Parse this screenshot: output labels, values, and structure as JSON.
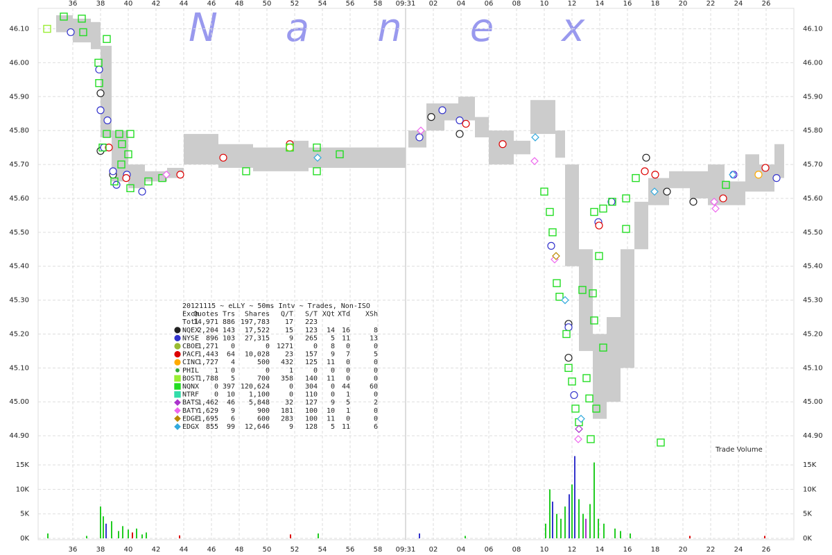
{
  "chart_data": {
    "type": "scatter",
    "watermark": "Nanex",
    "volume_label": "Trade Volume",
    "xlim": [
      33.5,
      88
    ],
    "xticks": [
      36,
      38,
      40,
      42,
      44,
      46,
      48,
      50,
      52,
      54,
      56,
      58,
      {
        "value": 60,
        "label": "09:31"
      },
      {
        "value": 62,
        "label": "02"
      },
      {
        "value": 64,
        "label": "04"
      },
      {
        "value": 66,
        "label": "06"
      },
      {
        "value": 68,
        "label": "08"
      },
      {
        "value": 70,
        "label": "10"
      },
      {
        "value": 72,
        "label": "12"
      },
      {
        "value": 74,
        "label": "14"
      },
      {
        "value": 76,
        "label": "16"
      },
      {
        "value": 78,
        "label": "18"
      },
      {
        "value": 80,
        "label": "20"
      },
      {
        "value": 82,
        "label": "22"
      },
      {
        "value": 84,
        "label": "24"
      },
      {
        "value": 86,
        "label": "26"
      }
    ],
    "ylim": [
      44.845,
      46.185
    ],
    "yticks": [
      {
        "value": 46.1,
        "label": "46.10"
      },
      {
        "value": 46.0,
        "label": "46.00"
      },
      {
        "value": 45.9,
        "label": "45.90"
      },
      {
        "value": 45.8,
        "label": "45.80"
      },
      {
        "value": 45.7,
        "label": "45.70"
      },
      {
        "value": 45.6,
        "label": "45.60"
      },
      {
        "value": 45.5,
        "label": "45.50"
      },
      {
        "value": 45.4,
        "label": "45.40"
      },
      {
        "value": 45.3,
        "label": "45.30"
      },
      {
        "value": 45.2,
        "label": "45.20"
      },
      {
        "value": 45.1,
        "label": "45.10"
      },
      {
        "value": 45.0,
        "label": "45.00"
      },
      {
        "value": 44.9,
        "label": "44.90"
      }
    ],
    "y2lim": [
      0,
      17000
    ],
    "y2ticks": [
      {
        "value": 15000,
        "label": "15K"
      },
      {
        "value": 10000,
        "label": "10K"
      },
      {
        "value": 5000,
        "label": "5K"
      },
      {
        "value": 0,
        "label": "0K"
      }
    ],
    "grid": true,
    "nbbo_color": "#cccccc",
    "nbbo": [
      {
        "x0": 34.8,
        "x1": 36.0,
        "low": 46.09,
        "high": 46.14
      },
      {
        "x0": 36.0,
        "x1": 37.3,
        "low": 46.06,
        "high": 46.13
      },
      {
        "x0": 37.3,
        "x1": 38.0,
        "low": 46.04,
        "high": 46.12
      },
      {
        "x0": 38.0,
        "x1": 38.8,
        "low": 45.78,
        "high": 46.05
      },
      {
        "x0": 38.8,
        "x1": 40.0,
        "low": 45.65,
        "high": 45.8
      },
      {
        "x0": 40.0,
        "x1": 41.2,
        "low": 45.63,
        "high": 45.7
      },
      {
        "x0": 41.2,
        "x1": 42.8,
        "low": 45.65,
        "high": 45.68
      },
      {
        "x0": 42.8,
        "x1": 44.0,
        "low": 45.66,
        "high": 45.69
      },
      {
        "x0": 44.0,
        "x1": 46.5,
        "low": 45.7,
        "high": 45.79
      },
      {
        "x0": 46.5,
        "x1": 49.0,
        "low": 45.69,
        "high": 45.76
      },
      {
        "x0": 49.0,
        "x1": 51.8,
        "low": 45.68,
        "high": 45.75
      },
      {
        "x0": 51.8,
        "x1": 53.0,
        "low": 45.68,
        "high": 45.77
      },
      {
        "x0": 53.0,
        "x1": 56.0,
        "low": 45.69,
        "high": 45.75
      },
      {
        "x0": 56.0,
        "x1": 60.0,
        "low": 45.69,
        "high": 45.75
      },
      {
        "x0": 60.2,
        "x1": 61.5,
        "low": 45.75,
        "high": 45.8
      },
      {
        "x0": 61.5,
        "x1": 62.8,
        "low": 45.8,
        "high": 45.88
      },
      {
        "x0": 62.8,
        "x1": 63.8,
        "low": 45.83,
        "high": 45.88
      },
      {
        "x0": 63.8,
        "x1": 65.0,
        "low": 45.83,
        "high": 45.9
      },
      {
        "x0": 65.0,
        "x1": 66.0,
        "low": 45.78,
        "high": 45.84
      },
      {
        "x0": 66.0,
        "x1": 67.8,
        "low": 45.7,
        "high": 45.8
      },
      {
        "x0": 67.8,
        "x1": 69.0,
        "low": 45.73,
        "high": 45.77
      },
      {
        "x0": 69.0,
        "x1": 70.8,
        "low": 45.79,
        "high": 45.89
      },
      {
        "x0": 70.8,
        "x1": 71.5,
        "low": 45.72,
        "high": 45.8
      },
      {
        "x0": 71.5,
        "x1": 72.5,
        "low": 45.4,
        "high": 45.7
      },
      {
        "x0": 72.5,
        "x1": 73.5,
        "low": 45.15,
        "high": 45.45
      },
      {
        "x0": 73.5,
        "x1": 74.5,
        "low": 44.95,
        "high": 45.2
      },
      {
        "x0": 74.5,
        "x1": 75.5,
        "low": 45.0,
        "high": 45.25
      },
      {
        "x0": 75.5,
        "x1": 76.5,
        "low": 45.1,
        "high": 45.45
      },
      {
        "x0": 76.5,
        "x1": 77.5,
        "low": 45.45,
        "high": 45.59
      },
      {
        "x0": 77.5,
        "x1": 79.0,
        "low": 45.58,
        "high": 45.66
      },
      {
        "x0": 79.0,
        "x1": 80.5,
        "low": 45.63,
        "high": 45.68
      },
      {
        "x0": 80.5,
        "x1": 81.8,
        "low": 45.6,
        "high": 45.68
      },
      {
        "x0": 81.8,
        "x1": 83.0,
        "low": 45.58,
        "high": 45.7
      },
      {
        "x0": 83.0,
        "x1": 84.5,
        "low": 45.58,
        "high": 45.65
      },
      {
        "x0": 84.5,
        "x1": 85.5,
        "low": 45.62,
        "high": 45.73
      },
      {
        "x0": 85.5,
        "x1": 86.6,
        "low": 45.62,
        "high": 45.7
      },
      {
        "x0": 86.6,
        "x1": 87.3,
        "low": 45.66,
        "high": 45.76
      }
    ],
    "table": {
      "title": "20121115 ~ eLLY ~ 50ms Intv ~ Trades, Non-ISO",
      "columns": [
        "Exch",
        "Quotes",
        "Trs",
        "Shares",
        "Q/T",
        "S/T",
        "XQt",
        "XTd",
        "XSh"
      ],
      "total": {
        "name": "Totl",
        "stats": [
          "14,971",
          "886",
          "197,783",
          "17",
          "223"
        ]
      }
    },
    "series": [
      {
        "name": "NQEX",
        "color": "#222222",
        "marker": "circle",
        "stats": [
          "2,204",
          "143",
          "17,522",
          "15",
          "123",
          "14",
          "16",
          "8"
        ],
        "x": [
          38.0,
          38.0,
          38.9,
          61.85,
          63.9,
          71.75,
          71.75,
          77.35,
          78.85,
          80.75
        ],
        "y": [
          45.91,
          45.74,
          45.67,
          45.84,
          45.79,
          45.23,
          45.13,
          45.72,
          45.62,
          45.59
        ]
      },
      {
        "name": "NYSE",
        "color": "#3333cc",
        "marker": "circle",
        "stats": [
          "896",
          "103",
          "27,315",
          "9",
          "265",
          "5",
          "11",
          "13"
        ],
        "x": [
          35.85,
          37.9,
          38.0,
          38.25,
          38.5,
          38.9,
          39.15,
          39.9,
          41.0,
          61.0,
          62.65,
          63.9,
          70.5,
          71.75,
          72.15,
          73.9,
          74.85,
          83.65,
          86.75
        ],
        "y": [
          46.09,
          45.98,
          45.86,
          45.75,
          45.83,
          45.68,
          45.64,
          45.67,
          45.62,
          45.78,
          45.86,
          45.83,
          45.46,
          45.22,
          45.02,
          45.53,
          45.59,
          45.67,
          45.66
        ]
      },
      {
        "name": "CBOE",
        "color": "#99bb33",
        "marker": "circle",
        "stats": [
          "1,271",
          "0",
          "0",
          "1271",
          "0",
          "8",
          "0",
          "0"
        ],
        "x": [],
        "y": []
      },
      {
        "name": "PACF",
        "color": "#dd0000",
        "marker": "circle",
        "stats": [
          "1,443",
          "64",
          "10,028",
          "23",
          "157",
          "9",
          "7",
          "5"
        ],
        "x": [
          38.6,
          39.85,
          43.75,
          46.85,
          51.65,
          64.35,
          67.0,
          73.95,
          77.25,
          78.0,
          82.9,
          85.95
        ],
        "y": [
          45.75,
          45.66,
          45.67,
          45.72,
          45.76,
          45.82,
          45.76,
          45.52,
          45.68,
          45.67,
          45.6,
          45.69
        ]
      },
      {
        "name": "CINC",
        "color": "#ffaa00",
        "marker": "circle",
        "stats": [
          "1,727",
          "4",
          "500",
          "432",
          "125",
          "11",
          "0",
          "0"
        ],
        "x": [
          51.65,
          85.45
        ],
        "y": [
          45.75,
          45.67
        ]
      },
      {
        "name": "PHIL",
        "color": "#33aa33",
        "marker": "dot",
        "stats": [
          "1",
          "0",
          "0",
          "1",
          "0",
          "0",
          "0",
          "0"
        ],
        "x": [],
        "y": []
      },
      {
        "name": "BOST",
        "color": "#99ee33",
        "marker": "square",
        "stats": [
          "1,788",
          "5",
          "700",
          "358",
          "140",
          "11",
          "0",
          "0"
        ],
        "x": [
          34.15
        ],
        "y": [
          46.1
        ]
      },
      {
        "name": "NQNX",
        "color": "#22dd22",
        "marker": "square",
        "stats": [
          "0",
          "397",
          "120,624",
          "0",
          "304",
          "0",
          "44",
          "60"
        ],
        "x": [
          35.35,
          36.65,
          36.75,
          38.45,
          37.85,
          37.9,
          38.45,
          38.15,
          39.35,
          40.15,
          39.55,
          40.0,
          39.5,
          39.0,
          40.15,
          41.45,
          42.45,
          48.5,
          51.65,
          53.6,
          53.6,
          55.25,
          70.0,
          70.4,
          70.6,
          70.9,
          71.1,
          71.6,
          71.75,
          72.0,
          72.25,
          72.5,
          72.75,
          73.05,
          73.25,
          73.35,
          73.5,
          73.6,
          73.75,
          73.95,
          73.6,
          74.25,
          74.25,
          74.9,
          75.9,
          75.9,
          76.6,
          78.4,
          83.1
        ],
        "y": [
          46.136,
          46.13,
          46.09,
          46.07,
          46.0,
          45.94,
          45.79,
          45.75,
          45.79,
          45.79,
          45.76,
          45.73,
          45.7,
          45.65,
          45.63,
          45.65,
          45.66,
          45.68,
          45.75,
          45.75,
          45.68,
          45.73,
          45.62,
          45.56,
          45.5,
          45.35,
          45.31,
          45.2,
          45.1,
          45.06,
          44.98,
          44.94,
          45.33,
          45.07,
          45.01,
          44.89,
          45.32,
          45.24,
          44.98,
          45.43,
          45.56,
          45.57,
          45.16,
          45.59,
          45.6,
          45.51,
          45.66,
          44.88,
          45.64
        ]
      },
      {
        "name": "NTRF",
        "color": "#33ddaa",
        "marker": "square",
        "stats": [
          "0",
          "10",
          "1,100",
          "0",
          "110",
          "0",
          "1",
          "0"
        ],
        "x": [],
        "y": []
      },
      {
        "name": "BATS",
        "color": "#aa33cc",
        "marker": "diamond",
        "stats": [
          "1,462",
          "46",
          "5,848",
          "32",
          "127",
          "9",
          "5",
          "2"
        ],
        "x": [
          72.5
        ],
        "y": [
          44.92
        ]
      },
      {
        "name": "BATY",
        "color": "#ee66ee",
        "marker": "diamond",
        "stats": [
          "1,629",
          "9",
          "900",
          "181",
          "100",
          "10",
          "1",
          "0"
        ],
        "x": [
          42.75,
          61.1,
          69.3,
          70.75,
          72.45,
          82.25,
          82.35,
          83.65
        ],
        "y": [
          45.67,
          45.8,
          45.71,
          45.42,
          44.89,
          45.59,
          45.57,
          45.67
        ]
      },
      {
        "name": "EDGE",
        "color": "#bb8800",
        "marker": "diamond",
        "stats": [
          "1,695",
          "6",
          "600",
          "283",
          "100",
          "11",
          "0",
          "0"
        ],
        "x": [
          70.85
        ],
        "y": [
          45.43
        ]
      },
      {
        "name": "EDGX",
        "color": "#33aadd",
        "marker": "diamond",
        "stats": [
          "855",
          "99",
          "12,646",
          "9",
          "128",
          "5",
          "11",
          "6"
        ],
        "x": [
          53.65,
          69.35,
          71.5,
          72.65,
          77.95,
          83.6
        ],
        "y": [
          45.72,
          45.78,
          45.3,
          44.95,
          45.62,
          45.67
        ]
      }
    ],
    "volume": {
      "x": [
        34.2,
        37.0,
        38.0,
        38.2,
        38.4,
        38.8,
        39.3,
        39.6,
        40.0,
        40.3,
        40.6,
        41.0,
        41.3,
        43.7,
        51.7,
        53.7,
        61.0,
        64.3,
        70.1,
        70.4,
        70.6,
        70.9,
        71.2,
        71.5,
        71.8,
        72.0,
        72.2,
        72.5,
        72.8,
        73.0,
        73.3,
        73.6,
        73.9,
        74.3,
        75.1,
        75.5,
        76.2,
        80.5,
        85.9
      ],
      "values": [
        1000,
        500,
        6500,
        4500,
        3000,
        3500,
        1500,
        2500,
        1800,
        1200,
        2000,
        800,
        1200,
        600,
        800,
        1000,
        1000,
        500,
        3000,
        10000,
        7500,
        5000,
        4000,
        6500,
        9000,
        11000,
        16800,
        8000,
        5000,
        4000,
        7000,
        15500,
        4000,
        3000,
        2000,
        1500,
        1000,
        500,
        500
      ],
      "colors": [
        "#22cc22",
        "#22cc22",
        "#22cc22",
        "#22cc22",
        "#3333cc",
        "#22cc22",
        "#22cc22",
        "#22cc22",
        "#22cc22",
        "#dd0000",
        "#22cc22",
        "#22cc22",
        "#22cc22",
        "#dd0000",
        "#dd0000",
        "#22cc22",
        "#3333cc",
        "#22cc22",
        "#22cc22",
        "#22cc22",
        "#3333cc",
        "#22cc22",
        "#22cc22",
        "#22cc22",
        "#3333cc",
        "#22cc22",
        "#3333cc",
        "#22cc22",
        "#22cc22",
        "#aa33cc",
        "#22cc22",
        "#22cc22",
        "#22cc22",
        "#22cc22",
        "#22cc22",
        "#22cc22",
        "#22cc22",
        "#dd0000",
        "#dd0000"
      ]
    }
  }
}
